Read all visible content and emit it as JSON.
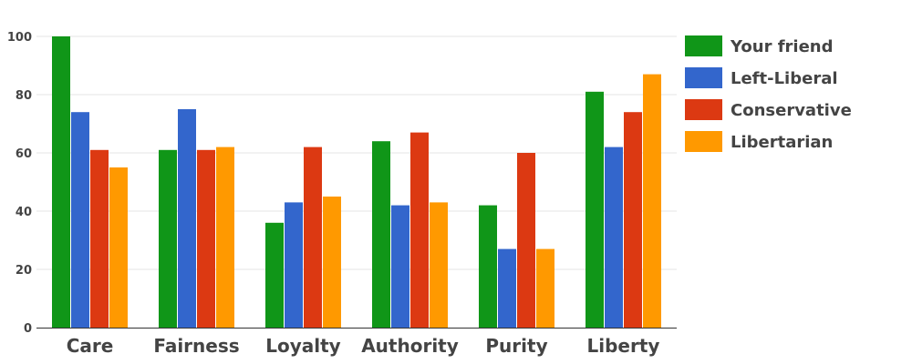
{
  "chart_data": {
    "type": "bar",
    "categories": [
      "Care",
      "Fairness",
      "Loyalty",
      "Authority",
      "Purity",
      "Liberty"
    ],
    "series": [
      {
        "name": "Your friend",
        "color": "#109618",
        "values": [
          100,
          61,
          36,
          64,
          42,
          81
        ]
      },
      {
        "name": "Left-Liberal",
        "color": "#3366cc",
        "values": [
          74,
          75,
          43,
          42,
          27,
          62
        ]
      },
      {
        "name": "Conservative",
        "color": "#dc3912",
        "values": [
          61,
          61,
          62,
          67,
          60,
          74
        ]
      },
      {
        "name": "Libertarian",
        "color": "#ff9900",
        "values": [
          55,
          62,
          45,
          43,
          27,
          87
        ]
      }
    ],
    "title": "",
    "xlabel": "",
    "ylabel": "",
    "ylim": [
      0,
      100
    ],
    "yticks": [
      "0",
      "20",
      "40",
      "60",
      "80",
      "100"
    ],
    "grid": true,
    "legend_position": "right"
  }
}
